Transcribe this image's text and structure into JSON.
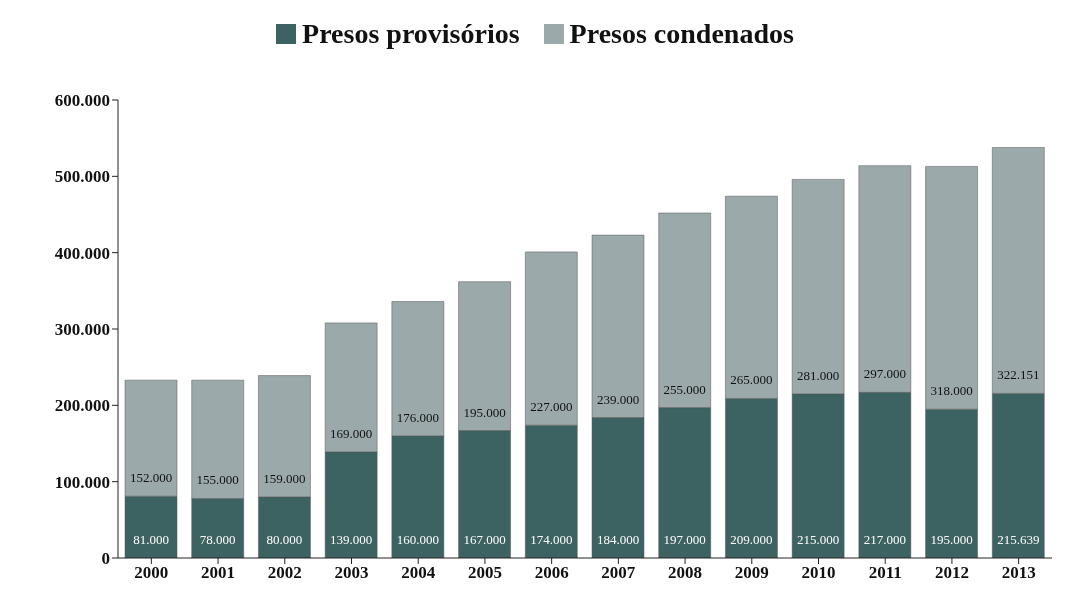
{
  "chart_data": {
    "type": "bar",
    "stacked": true,
    "legend": "top",
    "categories": [
      "2000",
      "2001",
      "2002",
      "2003",
      "2004",
      "2005",
      "2006",
      "2007",
      "2008",
      "2009",
      "2010",
      "2011",
      "2012",
      "2013"
    ],
    "series": [
      {
        "name": "Presos provisórios",
        "color": "#3d6262",
        "values": [
          81000,
          78000,
          80000,
          139000,
          160000,
          167000,
          174000,
          184000,
          197000,
          209000,
          215000,
          217000,
          195000,
          215639
        ],
        "value_labels": [
          "81.000",
          "78.000",
          "80.000",
          "139.000",
          "160.000",
          "167.000",
          "174.000",
          "184.000",
          "197.000",
          "209.000",
          "215.000",
          "217.000",
          "195.000",
          "215.639"
        ]
      },
      {
        "name": "Presos condenados",
        "color": "#9ba9ab",
        "values": [
          152000,
          155000,
          159000,
          169000,
          176000,
          195000,
          227000,
          239000,
          255000,
          265000,
          281000,
          297000,
          318000,
          322151
        ],
        "value_labels": [
          "152.000",
          "155.000",
          "159.000",
          "169.000",
          "176.000",
          "195.000",
          "227.000",
          "239.000",
          "255.000",
          "265.000",
          "281.000",
          "297.000",
          "318.000",
          "322.151"
        ]
      }
    ],
    "ylim": [
      0,
      600000
    ],
    "yticks": [
      0,
      {
        "value": 100000,
        "label": "100.000"
      },
      {
        "value": 200000,
        "label": "200.000"
      },
      {
        "value": 300000,
        "label": "300.000"
      },
      {
        "value": 400000,
        "label": "400.000"
      },
      {
        "value": 500000,
        "label": "500.000"
      },
      {
        "value": 600000,
        "label": "600.000"
      }
    ],
    "grid": false
  }
}
